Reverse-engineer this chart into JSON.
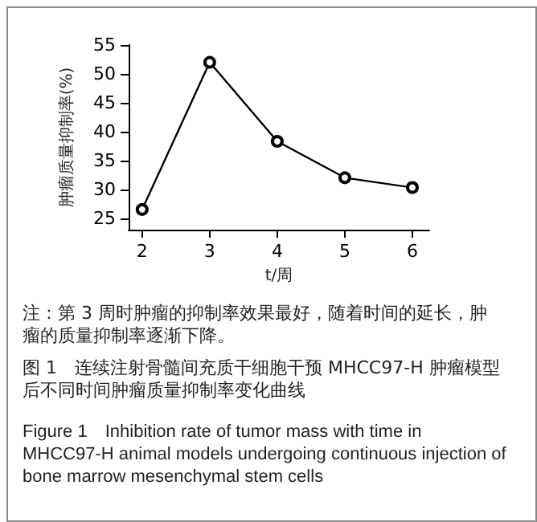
{
  "chart_data": {
    "type": "line",
    "xlabel": "t/周",
    "ylabel": "肿瘤质量抑制率(%)",
    "x": [
      2,
      3,
      4,
      5,
      6
    ],
    "series": [
      {
        "color": "#000000",
        "values": [
          26.5,
          52,
          38.3,
          32,
          30.3
        ]
      }
    ],
    "xlim": [
      1.8,
      6.25
    ],
    "xticks": [
      2,
      3,
      4,
      5,
      6
    ],
    "ylim": [
      23,
      55
    ],
    "yticks": [
      25,
      30,
      35,
      40,
      45,
      50,
      55
    ],
    "grid": false,
    "marker": "circle",
    "line_style": "solid",
    "annotations": [
      "注：第 3 周时肿瘤的抑制率效果最好，随着时间的延长，肿瘤的质量抑制率逐渐下降。",
      "图 1　连续注射骨髓间充质干细胞干预 MHCC97-H 肿瘤模型后不同时间肿瘤质量抑制率变化曲线",
      "Figure 1　Inhibition rate of tumor mass with time in MHCC97-H animal models undergoing continuous injection of bone marrow mesenchymal stem cells"
    ]
  }
}
